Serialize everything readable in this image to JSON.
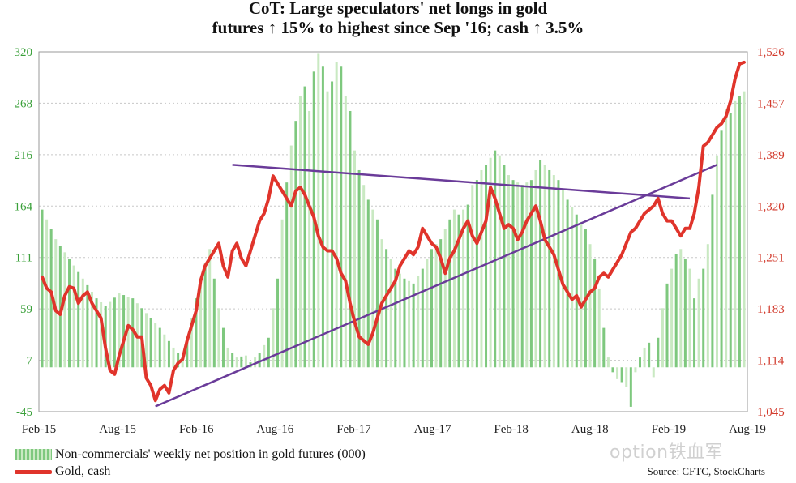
{
  "title_line1": "CoT: Large speculators' net longs in gold",
  "title_line2": "futures ↑ 15% to highest since Sep '16; cash ↑ 3.5%",
  "legend": {
    "bars": "Non-commercials' weekly net position in gold futures (000)",
    "line": "Gold, cash"
  },
  "source": "Source: CFTC, StockCharts",
  "watermark": "option铁血军",
  "colors": {
    "bars": "#7ec87e",
    "bars_light": "#c9e9c2",
    "line": "#e0342b",
    "trend": "#6a3b99",
    "grid": "#c8c8c8",
    "left_axis": "#3aa03a",
    "right_axis": "#d23a2c"
  },
  "chart_data": {
    "type": "bar+line",
    "x_ticks": [
      "Feb-15",
      "Aug-15",
      "Feb-16",
      "Aug-16",
      "Feb-17",
      "Aug-17",
      "Feb-18",
      "Aug-18",
      "Feb-19",
      "Aug-19"
    ],
    "y_left": {
      "ticks": [
        "-45",
        "7",
        "59",
        "111",
        "164",
        "216",
        "268",
        "320"
      ],
      "ylim": [
        -45,
        320
      ]
    },
    "y_right": {
      "ticks": [
        "1,045",
        "1,114",
        "1,183",
        "1,251",
        "1,320",
        "1,389",
        "1,457",
        "1,526"
      ],
      "ylim": [
        1045,
        1526
      ]
    },
    "grid": true,
    "series": [
      {
        "name": "Non-commercials' weekly net position in gold futures (000)",
        "axis": "left",
        "type": "bar",
        "points": [
          [
            0,
            160
          ],
          [
            3,
            130
          ],
          [
            6,
            110
          ],
          [
            9,
            90
          ],
          [
            12,
            70
          ],
          [
            14,
            62
          ],
          [
            17,
            75
          ],
          [
            20,
            70
          ],
          [
            23,
            55
          ],
          [
            26,
            40
          ],
          [
            29,
            20
          ],
          [
            31,
            10
          ],
          [
            33,
            50
          ],
          [
            35,
            90
          ],
          [
            37,
            120
          ],
          [
            39,
            60
          ],
          [
            41,
            20
          ],
          [
            43,
            10
          ],
          [
            45,
            12
          ],
          [
            46,
            5
          ],
          [
            48,
            15
          ],
          [
            50,
            30
          ],
          [
            52,
            90
          ],
          [
            53,
            150
          ],
          [
            55,
            225
          ],
          [
            57,
            275
          ],
          [
            58,
            285
          ],
          [
            59,
            260
          ],
          [
            60,
            300
          ],
          [
            61,
            318
          ],
          [
            62,
            305
          ],
          [
            63,
            280
          ],
          [
            64,
            290
          ],
          [
            65,
            310
          ],
          [
            66,
            305
          ],
          [
            67,
            275
          ],
          [
            68,
            260
          ],
          [
            69,
            220
          ],
          [
            70,
            200
          ],
          [
            71,
            185
          ],
          [
            72,
            170
          ],
          [
            73,
            160
          ],
          [
            74,
            150
          ],
          [
            75,
            130
          ],
          [
            76,
            120
          ],
          [
            78,
            100
          ],
          [
            80,
            90
          ],
          [
            82,
            85
          ],
          [
            84,
            100
          ],
          [
            86,
            120
          ],
          [
            88,
            130
          ],
          [
            90,
            150
          ],
          [
            91,
            160
          ],
          [
            92,
            155
          ],
          [
            94,
            165
          ],
          [
            95,
            185
          ],
          [
            96,
            190
          ],
          [
            97,
            200
          ],
          [
            98,
            205
          ],
          [
            100,
            220
          ],
          [
            101,
            215
          ],
          [
            102,
            205
          ],
          [
            103,
            195
          ],
          [
            104,
            190
          ],
          [
            106,
            185
          ],
          [
            108,
            190
          ],
          [
            109,
            200
          ],
          [
            110,
            210
          ],
          [
            111,
            205
          ],
          [
            112,
            200
          ],
          [
            114,
            190
          ],
          [
            115,
            180
          ],
          [
            116,
            170
          ],
          [
            118,
            155
          ],
          [
            120,
            140
          ],
          [
            121,
            125
          ],
          [
            122,
            110
          ],
          [
            123,
            80
          ],
          [
            124,
            40
          ],
          [
            125,
            10
          ],
          [
            126,
            -5
          ],
          [
            127,
            -12
          ],
          [
            128,
            -15
          ],
          [
            129,
            -20
          ],
          [
            130,
            -40
          ],
          [
            131,
            -5
          ],
          [
            132,
            10
          ],
          [
            133,
            20
          ],
          [
            134,
            25
          ],
          [
            135,
            -10
          ],
          [
            136,
            30
          ],
          [
            137,
            60
          ],
          [
            138,
            85
          ],
          [
            139,
            100
          ],
          [
            140,
            115
          ],
          [
            141,
            120
          ],
          [
            142,
            110
          ],
          [
            143,
            100
          ],
          [
            144,
            70
          ],
          [
            145,
            90
          ],
          [
            146,
            100
          ],
          [
            147,
            125
          ],
          [
            148,
            175
          ],
          [
            149,
            215
          ],
          [
            150,
            240
          ],
          [
            151,
            262
          ],
          [
            152,
            258
          ],
          [
            153,
            270
          ],
          [
            154,
            275
          ],
          [
            155,
            280
          ]
        ]
      },
      {
        "name": "Gold, cash",
        "axis": "right",
        "type": "line",
        "points": [
          [
            0,
            1225
          ],
          [
            1,
            1210
          ],
          [
            2,
            1205
          ],
          [
            3,
            1180
          ],
          [
            4,
            1175
          ],
          [
            5,
            1200
          ],
          [
            6,
            1212
          ],
          [
            7,
            1210
          ],
          [
            8,
            1190
          ],
          [
            9,
            1200
          ],
          [
            10,
            1205
          ],
          [
            11,
            1190
          ],
          [
            12,
            1180
          ],
          [
            13,
            1170
          ],
          [
            14,
            1130
          ],
          [
            15,
            1100
          ],
          [
            16,
            1095
          ],
          [
            17,
            1120
          ],
          [
            18,
            1140
          ],
          [
            19,
            1160
          ],
          [
            20,
            1155
          ],
          [
            21,
            1145
          ],
          [
            22,
            1145
          ],
          [
            23,
            1090
          ],
          [
            24,
            1080
          ],
          [
            25,
            1060
          ],
          [
            26,
            1075
          ],
          [
            27,
            1080
          ],
          [
            28,
            1070
          ],
          [
            29,
            1100
          ],
          [
            30,
            1110
          ],
          [
            31,
            1115
          ],
          [
            32,
            1140
          ],
          [
            33,
            1160
          ],
          [
            34,
            1180
          ],
          [
            35,
            1220
          ],
          [
            36,
            1240
          ],
          [
            37,
            1250
          ],
          [
            38,
            1260
          ],
          [
            39,
            1270
          ],
          [
            40,
            1240
          ],
          [
            41,
            1225
          ],
          [
            42,
            1260
          ],
          [
            43,
            1270
          ],
          [
            44,
            1250
          ],
          [
            45,
            1240
          ],
          [
            46,
            1260
          ],
          [
            47,
            1280
          ],
          [
            48,
            1300
          ],
          [
            49,
            1310
          ],
          [
            50,
            1330
          ],
          [
            51,
            1360
          ],
          [
            52,
            1350
          ],
          [
            53,
            1340
          ],
          [
            54,
            1330
          ],
          [
            55,
            1320
          ],
          [
            56,
            1340
          ],
          [
            57,
            1345
          ],
          [
            58,
            1335
          ],
          [
            59,
            1320
          ],
          [
            60,
            1305
          ],
          [
            61,
            1280
          ],
          [
            62,
            1265
          ],
          [
            63,
            1260
          ],
          [
            64,
            1260
          ],
          [
            65,
            1250
          ],
          [
            66,
            1230
          ],
          [
            67,
            1220
          ],
          [
            68,
            1190
          ],
          [
            69,
            1165
          ],
          [
            70,
            1145
          ],
          [
            71,
            1140
          ],
          [
            72,
            1135
          ],
          [
            73,
            1150
          ],
          [
            74,
            1170
          ],
          [
            75,
            1190
          ],
          [
            76,
            1200
          ],
          [
            77,
            1210
          ],
          [
            78,
            1220
          ],
          [
            79,
            1240
          ],
          [
            80,
            1250
          ],
          [
            81,
            1260
          ],
          [
            82,
            1255
          ],
          [
            83,
            1265
          ],
          [
            84,
            1290
          ],
          [
            85,
            1280
          ],
          [
            86,
            1270
          ],
          [
            87,
            1265
          ],
          [
            88,
            1250
          ],
          [
            89,
            1230
          ],
          [
            90,
            1250
          ],
          [
            91,
            1260
          ],
          [
            92,
            1275
          ],
          [
            93,
            1290
          ],
          [
            94,
            1300
          ],
          [
            95,
            1280
          ],
          [
            96,
            1270
          ],
          [
            97,
            1285
          ],
          [
            98,
            1300
          ],
          [
            99,
            1345
          ],
          [
            100,
            1330
          ],
          [
            101,
            1310
          ],
          [
            102,
            1290
          ],
          [
            103,
            1295
          ],
          [
            104,
            1290
          ],
          [
            105,
            1275
          ],
          [
            106,
            1285
          ],
          [
            107,
            1300
          ],
          [
            108,
            1310
          ],
          [
            109,
            1320
          ],
          [
            110,
            1300
          ],
          [
            111,
            1275
          ],
          [
            112,
            1265
          ],
          [
            113,
            1255
          ],
          [
            114,
            1235
          ],
          [
            115,
            1215
          ],
          [
            116,
            1205
          ],
          [
            117,
            1195
          ],
          [
            118,
            1200
          ],
          [
            119,
            1185
          ],
          [
            120,
            1195
          ],
          [
            121,
            1205
          ],
          [
            122,
            1210
          ],
          [
            123,
            1225
          ],
          [
            124,
            1230
          ],
          [
            125,
            1225
          ],
          [
            126,
            1235
          ],
          [
            127,
            1245
          ],
          [
            128,
            1255
          ],
          [
            129,
            1270
          ],
          [
            130,
            1285
          ],
          [
            131,
            1290
          ],
          [
            132,
            1300
          ],
          [
            133,
            1310
          ],
          [
            134,
            1315
          ],
          [
            135,
            1320
          ],
          [
            136,
            1330
          ],
          [
            137,
            1310
          ],
          [
            138,
            1300
          ],
          [
            139,
            1300
          ],
          [
            140,
            1290
          ],
          [
            141,
            1280
          ],
          [
            142,
            1290
          ],
          [
            143,
            1290
          ],
          [
            144,
            1310
          ],
          [
            145,
            1345
          ],
          [
            146,
            1400
          ],
          [
            147,
            1405
          ],
          [
            148,
            1415
          ],
          [
            149,
            1425
          ],
          [
            150,
            1430
          ],
          [
            151,
            1440
          ],
          [
            152,
            1460
          ],
          [
            153,
            1490
          ],
          [
            154,
            1510
          ],
          [
            155,
            1512
          ]
        ]
      }
    ],
    "trendlines": [
      {
        "axis": "right",
        "from": [
          25,
          1052
        ],
        "to": [
          149,
          1375
        ]
      },
      {
        "axis": "right",
        "from": [
          42,
          1375
        ],
        "to": [
          143,
          1330
        ]
      }
    ]
  }
}
